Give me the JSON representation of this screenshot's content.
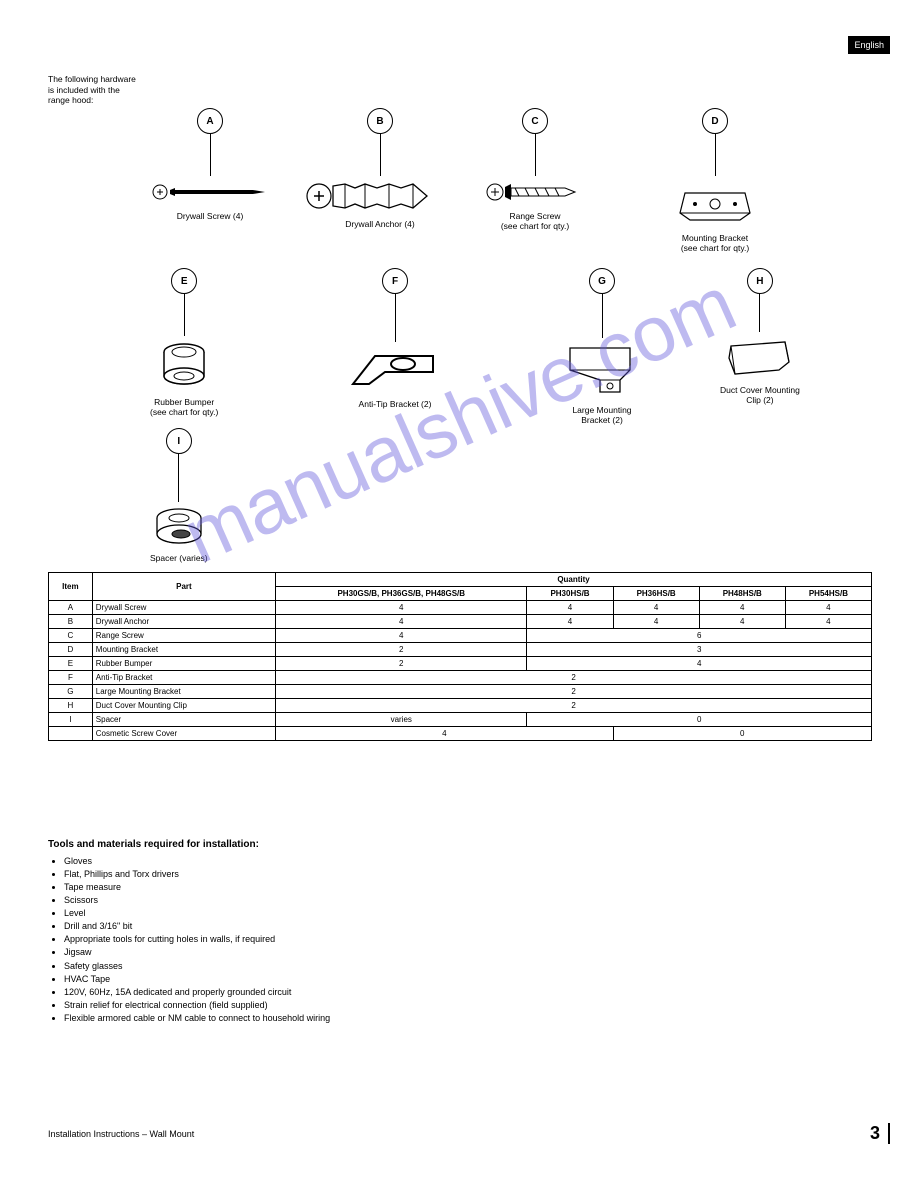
{
  "lang_tab": "English",
  "intro": "The following hardware is included with the range hood:",
  "parts": {
    "A": {
      "label": "A",
      "desc": "Drywall Screw (4)",
      "stem": 42
    },
    "B": {
      "label": "B",
      "desc": "Drywall Anchor (4)",
      "stem": 42
    },
    "C": {
      "label": "C",
      "desc": "Range Screw\n(see chart for qty.)",
      "stem": 42
    },
    "D": {
      "label": "D",
      "desc": "Mounting Bracket\n(see chart for qty.)",
      "stem": 42
    },
    "E": {
      "label": "E",
      "desc": "Rubber Bumper\n(see chart for qty.)",
      "stem": 42
    },
    "F": {
      "label": "F",
      "desc": "Anti-Tip Bracket (2)",
      "stem": 48
    },
    "G": {
      "label": "G",
      "desc": "Large Mounting\nBracket (2)",
      "stem": 44
    },
    "H": {
      "label": "H",
      "desc": "Duct Cover Mounting\nClip (2)",
      "stem": 38
    },
    "I": {
      "label": "I",
      "desc": "Spacer (varies)",
      "stem": 48
    }
  },
  "table": {
    "h_item": "Item",
    "h_part": "Part",
    "h_qty": "Quantity",
    "models_header": [
      "PH30GS/B, PH36GS/B, PH48GS/B",
      "PH30HS/B",
      "PH36HS/B",
      "PH48HS/B",
      "PH54HS/B"
    ],
    "rows": [
      {
        "item": "A",
        "part": "Drywall Screw",
        "cells": [
          "4",
          "4",
          "4",
          "4",
          "4"
        ]
      },
      {
        "item": "B",
        "part": "Drywall Anchor",
        "cells": [
          "4",
          "4",
          "4",
          "4",
          "4"
        ]
      },
      {
        "item": "C",
        "part": "Range Screw",
        "cells": [
          "4",
          "6"
        ],
        "spans": [
          1,
          4
        ]
      },
      {
        "item": "D",
        "part": "Mounting Bracket",
        "cells": [
          "2",
          "3"
        ],
        "spans": [
          1,
          4
        ]
      },
      {
        "item": "E",
        "part": "Rubber Bumper",
        "cells": [
          "2",
          "4"
        ],
        "spans": [
          1,
          4
        ]
      },
      {
        "item": "F",
        "part": "Anti-Tip Bracket",
        "cells": [
          "2"
        ],
        "spans": [
          5
        ]
      },
      {
        "item": "G",
        "part": "Large Mounting Bracket",
        "cells": [
          "2"
        ],
        "spans": [
          5
        ]
      },
      {
        "item": "H",
        "part": "Duct Cover Mounting Clip",
        "cells": [
          "2"
        ],
        "spans": [
          5
        ]
      },
      {
        "item": "I",
        "part": "Spacer",
        "cells": [
          "varies",
          "0"
        ],
        "spans": [
          1,
          4
        ]
      },
      {
        "item": "",
        "part": "Cosmetic Screw Cover",
        "cells": [
          "4",
          "0"
        ],
        "spans": [
          2,
          3
        ]
      }
    ]
  },
  "tools": {
    "heading": "Tools and materials required for installation:",
    "items": [
      "Gloves",
      "Flat, Phillips and Torx drivers",
      "Tape measure",
      "Scissors",
      "Level",
      "Drill and 3/16\" bit",
      "Appropriate tools for cutting holes in walls, if required",
      "Jigsaw",
      "Safety glasses",
      "HVAC Tape",
      "120V, 60Hz, 15A dedicated and properly grounded circuit",
      "Strain relief for electrical connection (field supplied)",
      "Flexible armored cable or NM cable to connect to household wiring"
    ]
  },
  "footer": {
    "left": "Installation Instructions – Wall Mount",
    "page": "3"
  },
  "watermark": "manualshive.com"
}
